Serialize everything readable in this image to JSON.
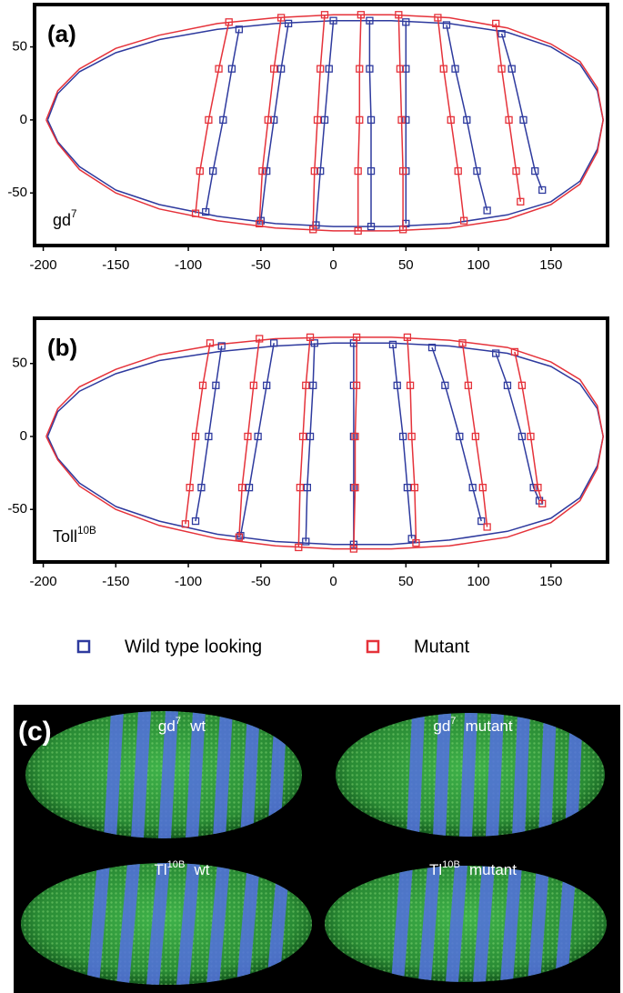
{
  "chart_data": [
    {
      "type": "line",
      "panel_label": "(a)",
      "annotation": {
        "text": "gd",
        "sup": "7"
      },
      "xlim": [
        -206,
        189
      ],
      "ylim": [
        -86,
        79
      ],
      "xticks": [
        -200,
        -150,
        -100,
        -50,
        0,
        50,
        100,
        150
      ],
      "yticks": [
        -50,
        0,
        50
      ],
      "series": [
        {
          "color": "#2e3a9e",
          "markers": false,
          "x": [
            -197,
            -190,
            -175,
            -150,
            -120,
            -80,
            -40,
            0,
            40,
            80,
            120,
            150,
            170,
            182,
            186,
            182,
            170,
            150,
            120,
            80,
            40,
            0,
            -40,
            -80,
            -120,
            -150,
            -175,
            -190,
            -197
          ],
          "values": [
            0,
            18,
            33,
            46,
            55,
            62,
            66,
            68,
            68,
            66,
            60,
            50,
            38,
            20,
            0,
            -20,
            -42,
            -56,
            -65,
            -71,
            -73,
            -73,
            -71,
            -66,
            -58,
            -48,
            -32,
            -15,
            0
          ]
        },
        {
          "color": "#e5323a",
          "markers": false,
          "x": [
            -198,
            -190,
            -175,
            -150,
            -120,
            -80,
            -40,
            0,
            40,
            80,
            120,
            150,
            170,
            182,
            186,
            182,
            170,
            150,
            120,
            80,
            40,
            0,
            -40,
            -80,
            -120,
            -150,
            -175,
            -190,
            -198
          ],
          "values": [
            0,
            20,
            35,
            49,
            58,
            66,
            70,
            72,
            72,
            70,
            63,
            52,
            40,
            22,
            0,
            -22,
            -44,
            -58,
            -68,
            -74,
            -76,
            -76,
            -74,
            -69,
            -61,
            -50,
            -34,
            -16,
            0
          ]
        },
        {
          "color": "#2e3a9e",
          "markers": true,
          "x": [
            -65,
            -70,
            -76,
            -83,
            -88,
            null,
            -31,
            -36,
            -41,
            -46,
            -50,
            null,
            0,
            -3,
            -6,
            -9,
            -12,
            null,
            25,
            25,
            26,
            26,
            26,
            null,
            50,
            50,
            50,
            50,
            50,
            null,
            78,
            84,
            92,
            99,
            106,
            null,
            116,
            123,
            131,
            139,
            144
          ],
          "values": [
            62,
            35,
            0,
            -35,
            -63,
            null,
            66,
            35,
            0,
            -35,
            -69,
            null,
            68,
            35,
            0,
            -35,
            -72,
            null,
            68,
            35,
            0,
            -35,
            -73,
            null,
            67,
            35,
            0,
            -35,
            -71,
            null,
            65,
            35,
            0,
            -35,
            -62,
            null,
            59,
            35,
            0,
            -35,
            -48
          ]
        },
        {
          "color": "#e5323a",
          "markers": true,
          "x": [
            -72,
            -79,
            -86,
            -92,
            -95,
            null,
            -36,
            -41,
            -45,
            -49,
            -51,
            null,
            -6,
            -9,
            -11,
            -13,
            -14,
            null,
            19,
            18,
            18,
            17,
            17,
            null,
            45,
            46,
            47,
            48,
            48,
            null,
            72,
            76,
            81,
            86,
            90,
            null,
            112,
            116,
            121,
            126,
            129
          ],
          "values": [
            67,
            35,
            0,
            -35,
            -64,
            null,
            70,
            35,
            0,
            -35,
            -71,
            null,
            72,
            35,
            0,
            -35,
            -75,
            null,
            72,
            35,
            0,
            -35,
            -76,
            null,
            72,
            35,
            0,
            -35,
            -75,
            null,
            70,
            35,
            0,
            -35,
            -69,
            null,
            66,
            35,
            0,
            -35,
            -56
          ]
        }
      ]
    },
    {
      "type": "line",
      "panel_label": "(b)",
      "annotation": {
        "text": "Toll",
        "sup": "10B"
      },
      "xlim": [
        -206,
        189
      ],
      "ylim": [
        -86,
        81
      ],
      "xticks": [
        -200,
        -150,
        -100,
        -50,
        0,
        50,
        100,
        150
      ],
      "yticks": [
        -50,
        0,
        50
      ],
      "series": [
        {
          "color": "#2e3a9e",
          "markers": false,
          "x": [
            -197,
            -190,
            -175,
            -150,
            -120,
            -80,
            -40,
            0,
            40,
            80,
            120,
            150,
            170,
            182,
            186,
            182,
            170,
            150,
            120,
            80,
            40,
            0,
            -40,
            -80,
            -120,
            -150,
            -175,
            -190,
            -197
          ],
          "values": [
            0,
            17,
            31,
            43,
            52,
            58,
            62,
            64,
            64,
            62,
            57,
            48,
            36,
            19,
            0,
            -20,
            -42,
            -56,
            -65,
            -71,
            -74,
            -74,
            -72,
            -67,
            -58,
            -48,
            -32,
            -15,
            0
          ]
        },
        {
          "color": "#e5323a",
          "markers": false,
          "x": [
            -198,
            -190,
            -175,
            -150,
            -120,
            -80,
            -40,
            0,
            40,
            80,
            120,
            150,
            170,
            182,
            186,
            182,
            170,
            150,
            120,
            80,
            40,
            0,
            -40,
            -80,
            -120,
            -150,
            -175,
            -190,
            -198
          ],
          "values": [
            0,
            19,
            34,
            46,
            56,
            63,
            67,
            68,
            68,
            66,
            61,
            51,
            39,
            21,
            0,
            -22,
            -44,
            -59,
            -69,
            -75,
            -77,
            -77,
            -75,
            -70,
            -61,
            -50,
            -34,
            -16,
            0
          ]
        },
        {
          "color": "#2e3a9e",
          "markers": true,
          "x": [
            -77,
            -81,
            -86,
            -91,
            -95,
            null,
            -41,
            -46,
            -52,
            -58,
            -64,
            null,
            -13,
            -14,
            -16,
            -18,
            -19,
            null,
            14,
            14,
            14,
            14,
            14,
            null,
            41,
            44,
            48,
            51,
            54,
            null,
            68,
            77,
            87,
            96,
            102,
            null,
            112,
            120,
            130,
            138,
            142
          ],
          "values": [
            62,
            35,
            0,
            -35,
            -58,
            null,
            64,
            35,
            0,
            -35,
            -68,
            null,
            64,
            35,
            0,
            -35,
            -72,
            null,
            64,
            35,
            0,
            -35,
            -74,
            null,
            63,
            35,
            0,
            -35,
            -70,
            null,
            61,
            35,
            0,
            -35,
            -58,
            null,
            57,
            35,
            0,
            -35,
            -44
          ]
        },
        {
          "color": "#e5323a",
          "markers": true,
          "x": [
            -85,
            -90,
            -95,
            -99,
            -102,
            null,
            -51,
            -55,
            -59,
            -63,
            -65,
            null,
            -16,
            -19,
            -21,
            -23,
            -24,
            null,
            16,
            16,
            15,
            15,
            14,
            null,
            51,
            53,
            54,
            56,
            57,
            null,
            89,
            93,
            98,
            103,
            106,
            null,
            125,
            130,
            136,
            141,
            144
          ],
          "values": [
            64,
            35,
            0,
            -35,
            -60,
            null,
            67,
            35,
            0,
            -35,
            -69,
            null,
            68,
            35,
            0,
            -35,
            -76,
            null,
            68,
            35,
            0,
            -35,
            -77,
            null,
            68,
            35,
            0,
            -35,
            -73,
            null,
            64,
            35,
            0,
            -35,
            -62,
            null,
            58,
            35,
            0,
            -35,
            -46
          ]
        }
      ]
    }
  ],
  "legend": {
    "items": [
      {
        "label": "Wild type looking",
        "color": "#2e3a9e"
      },
      {
        "label": "Mutant",
        "color": "#e5323a"
      }
    ]
  },
  "panel_c": {
    "label": "(c)",
    "images": [
      {
        "text": "gd",
        "sup": "7",
        "suffix": "wt"
      },
      {
        "text": "gd",
        "sup": "7",
        "suffix": "mutant"
      },
      {
        "text": "Tl",
        "sup": "10B",
        "suffix": "wt"
      },
      {
        "text": "Tl",
        "sup": "10B",
        "suffix": "mutant"
      }
    ]
  }
}
